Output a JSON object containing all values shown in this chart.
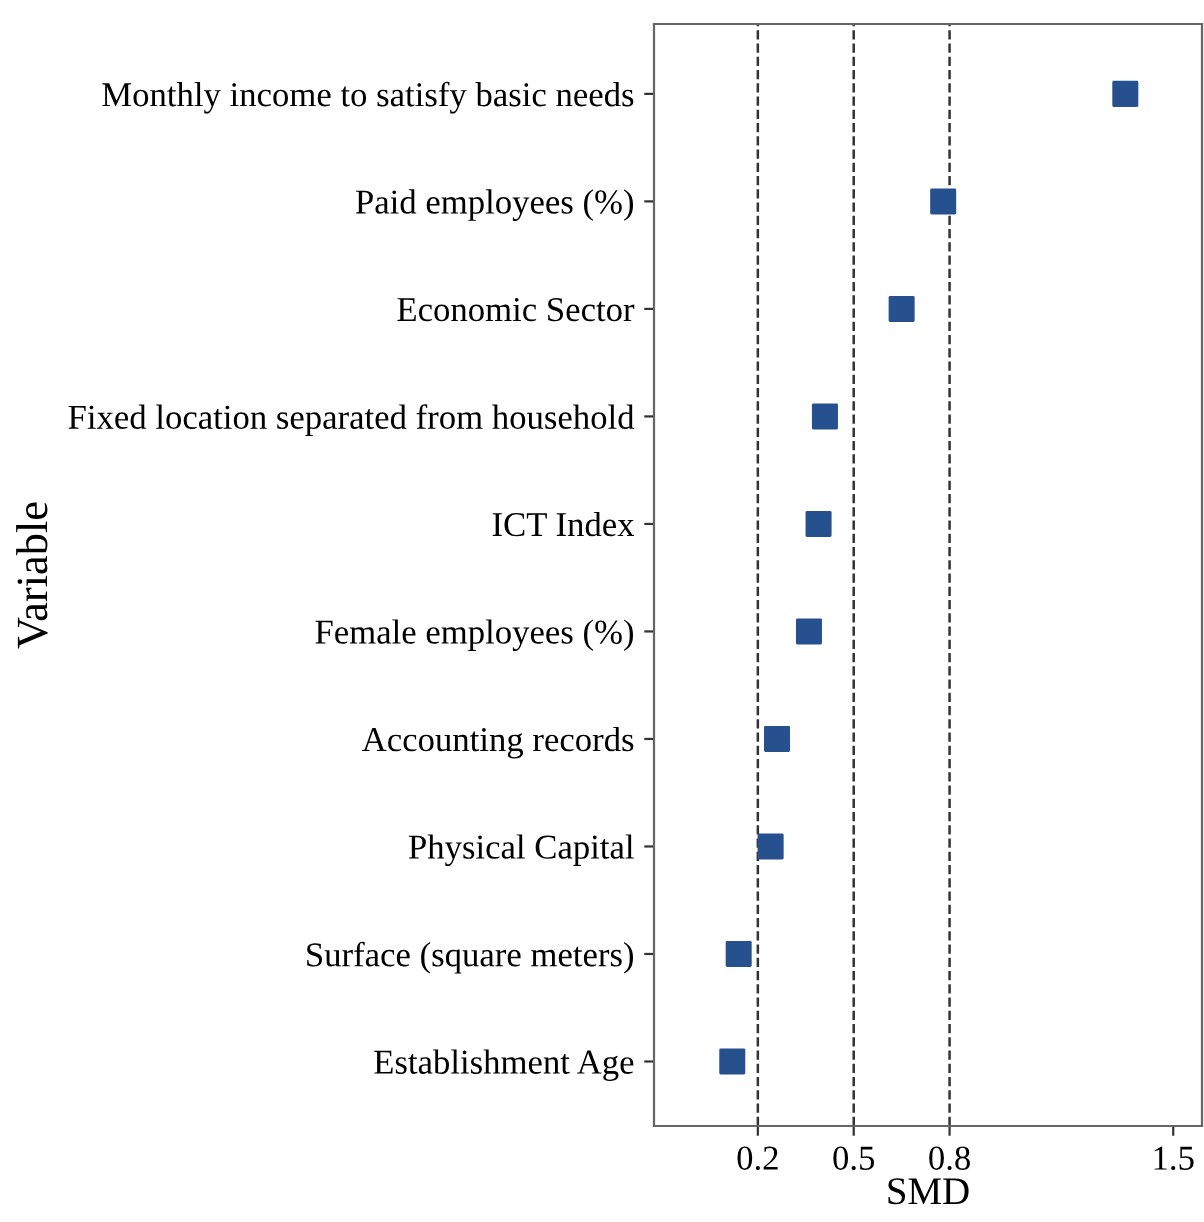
{
  "chart_data": {
    "type": "scatter",
    "orientation": "horizontal",
    "xlabel": "SMD",
    "ylabel": "Variable",
    "categories": [
      "Monthly income to satisfy basic needs",
      "Paid employees (%)",
      "Economic Sector",
      "Fixed location separated from household",
      "ICT Index",
      "Female employees (%)",
      "Accounting records",
      "Physical Capital",
      "Surface (square meters)",
      "Establishment Age"
    ],
    "series": [
      {
        "color": "#27508f",
        "values": [
          1.35,
          0.78,
          0.65,
          0.41,
          0.39,
          0.36,
          0.26,
          0.24,
          0.14,
          0.12
        ]
      }
    ],
    "xlim": [
      -0.125,
      1.59
    ],
    "xticks": [
      0.2,
      0.5,
      0.8,
      1.5
    ],
    "ref_lines": [
      {
        "axis": "x",
        "value": 0.2,
        "line_style": "dashed",
        "color": "#333333"
      },
      {
        "axis": "x",
        "value": 0.5,
        "line_style": "dashed",
        "color": "#333333"
      },
      {
        "axis": "x",
        "value": 0.8,
        "line_style": "dashed",
        "color": "#333333"
      }
    ],
    "marker": "square",
    "grid": false,
    "legend": false
  }
}
